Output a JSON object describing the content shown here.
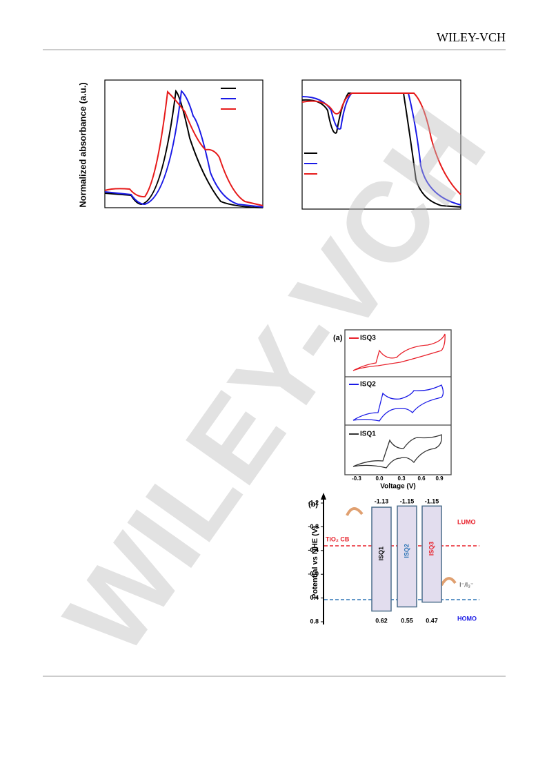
{
  "header": {
    "brand": "WILEY-VCH"
  },
  "watermark": "WILEY-VCH",
  "figure_1": {
    "y_label": "Normalized absorbance (a.u.)"
  },
  "figure_2": {
    "panel_a": {
      "label": "(a)",
      "legends": [
        "ISQ3",
        "ISQ2",
        "ISQ1"
      ],
      "x_ticks": [
        "-0.3",
        "0.0",
        "0.3",
        "0.6",
        "0.9"
      ],
      "x_label": "Voltage (V)"
    },
    "panel_b": {
      "label": "(b)",
      "y_label": "Potential vs NHE (V)",
      "ylim": [
        -1.2,
        0.8
      ],
      "y_ticks": [
        -1.2,
        -0.8,
        -0.4,
        {
          "value": 0,
          "label": "-0.0"
        },
        0.4,
        0.8
      ],
      "dyes": [
        {
          "name": "ISQ1",
          "lumo": -1.13,
          "homo": 0.62,
          "color": "#000000"
        },
        {
          "name": "ISQ2",
          "lumo": -1.15,
          "homo": 0.55,
          "color": "#2e75b6"
        },
        {
          "name": "ISQ3",
          "lumo": -1.15,
          "homo": 0.47,
          "color": "#e8202a"
        }
      ],
      "lumo_label": "LUMO",
      "homo_label": "HOMO",
      "tio2_label": "TiO₂ CB",
      "redox_label": "I⁻/I₃⁻"
    }
  }
}
